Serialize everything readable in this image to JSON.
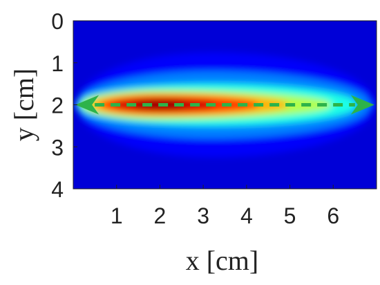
{
  "chart_data": {
    "type": "heatmap",
    "xlabel": "x [cm]",
    "ylabel": "y [cm]",
    "xlim": [
      0,
      7
    ],
    "ylim": [
      4,
      0
    ],
    "x_ticks": [
      1,
      2,
      3,
      4,
      5,
      6
    ],
    "y_ticks": [
      0,
      1,
      2,
      3,
      4
    ],
    "colormap": "jet",
    "colormap_colors": [
      "#00008f",
      "#0000ff",
      "#0080ff",
      "#00ffff",
      "#80ff80",
      "#ffff00",
      "#ff8000",
      "#ff0000",
      "#800000"
    ],
    "field": {
      "description_free": "",
      "center_y": 2,
      "peak_x": 2,
      "contour_levels": [
        {
          "level": 0.12,
          "x_start": 0.05,
          "x_end": 7.0,
          "half_width": 1.25
        },
        {
          "level": 0.25,
          "x_start": 0.05,
          "x_end": 6.9,
          "half_width": 0.8
        },
        {
          "level": 0.4,
          "x_start": 0.05,
          "x_end": 6.6,
          "half_width": 0.5
        },
        {
          "level": 0.55,
          "x_start": 0.15,
          "x_end": 6.0,
          "half_width": 0.35
        },
        {
          "level": 0.7,
          "x_start": 0.35,
          "x_end": 5.0,
          "half_width": 0.28
        },
        {
          "level": 0.82,
          "x_start": 0.6,
          "x_end": 4.3,
          "half_width": 0.22
        },
        {
          "level": 0.92,
          "x_start": 0.9,
          "x_end": 3.3,
          "half_width": 0.16
        },
        {
          "level": 0.98,
          "x_start": 1.4,
          "x_end": 2.6,
          "half_width": 0.1
        }
      ]
    },
    "annotations": [
      {
        "type": "double-arrow",
        "x_start": 0.05,
        "x_end": 6.95,
        "y": 2,
        "style": "dashed",
        "color": "#2db34a"
      }
    ]
  }
}
